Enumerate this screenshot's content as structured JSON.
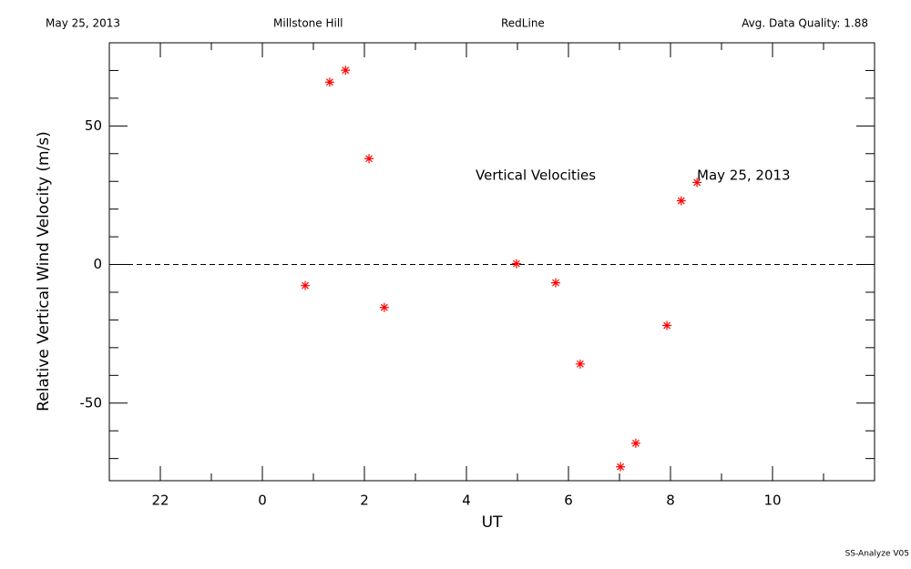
{
  "header": {
    "date": "May 25, 2013",
    "site": "Millstone Hill",
    "instrument": "RedLine",
    "quality": "Avg. Data Quality: 1.88"
  },
  "footer": "SS-Analyze V05",
  "chart_data": {
    "type": "scatter",
    "x_label": "UT",
    "y_label": "Relative Vertical Wind Velocity (m/s)",
    "annotations": [
      "Vertical Velocities",
      "May 25, 2013"
    ],
    "x": [
      0.84,
      1.32,
      1.63,
      2.09,
      2.39,
      4.98,
      5.75,
      6.23,
      7.02,
      7.32,
      7.93,
      8.21,
      8.52
    ],
    "values": [
      -7.6,
      65.8,
      70.1,
      38.2,
      -15.5,
      0.3,
      -6.6,
      -35.9,
      -73.0,
      -64.5,
      -22.0,
      23.0,
      29.6
    ],
    "color": "#ff0000",
    "marker": "asterisk",
    "zero_line": true,
    "xlim": [
      -3,
      12
    ],
    "xticks": [
      {
        "value": -2,
        "label": "22"
      },
      0,
      2,
      4,
      6,
      8,
      10
    ],
    "minor_xticks": [
      -3,
      -1,
      1,
      3,
      5,
      7,
      9,
      11
    ],
    "ylim": [
      -78,
      80
    ],
    "yticks": [
      -50,
      0,
      50
    ],
    "minor_yticks": [
      -70,
      -60,
      -40,
      -30,
      -20,
      -10,
      10,
      20,
      30,
      40,
      60,
      70
    ]
  }
}
